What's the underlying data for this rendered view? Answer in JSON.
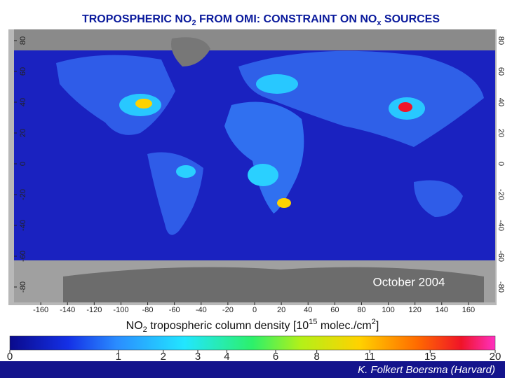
{
  "title": {
    "parts": [
      "TROPOSPHERIC NO",
      "2",
      " FROM OMI: CONSTRAINT ON NO",
      "x",
      " SOURCES"
    ]
  },
  "map": {
    "lonlim": [
      -180,
      180
    ],
    "latlim": [
      -90,
      90
    ],
    "lon_ticks": [
      -160,
      -140,
      -120,
      -100,
      -80,
      -60,
      -40,
      -20,
      0,
      20,
      40,
      60,
      80,
      100,
      120,
      140,
      160
    ],
    "lat_ticks": [
      -80,
      -60,
      -40,
      -20,
      0,
      20,
      40,
      60,
      80
    ],
    "annotation": "October 2004"
  },
  "colorbar": {
    "label_parts": [
      "NO",
      "2",
      " tropospheric column density [10",
      "15",
      " molec./cm",
      "2",
      "]"
    ],
    "ticks": [
      0,
      1,
      2,
      3,
      4,
      6,
      8,
      11,
      15,
      20
    ]
  },
  "footer": {
    "credit": "K. Folkert Boersma (Harvard)"
  }
}
